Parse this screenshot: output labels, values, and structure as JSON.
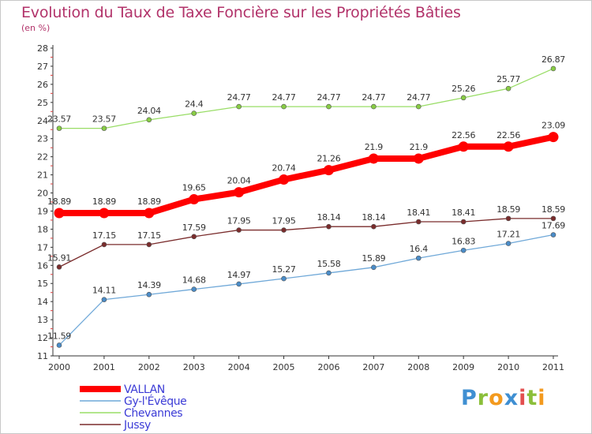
{
  "title": "Evolution du Taux de Taxe Foncière sur les Propriétés Bâties",
  "subtitle": "(en %)",
  "logo_text": "Proxiti",
  "chart_data": {
    "type": "line",
    "title": "Evolution du Taux de Taxe Foncière sur les Propriétés Bâties",
    "ylabel": "(en %)",
    "xlabel": "",
    "x": [
      2000,
      2001,
      2002,
      2003,
      2004,
      2005,
      2006,
      2007,
      2008,
      2009,
      2010,
      2011
    ],
    "ylim": [
      11,
      28
    ],
    "yticks": [
      11,
      12,
      13,
      14,
      15,
      16,
      17,
      18,
      19,
      20,
      21,
      22,
      23,
      24,
      25,
      26,
      27,
      28
    ],
    "grid": false,
    "legend_placement": "bottom-left",
    "series": [
      {
        "name": "VALLAN",
        "color": "#ff0000",
        "values": [
          18.89,
          18.89,
          18.89,
          19.65,
          20.04,
          20.74,
          21.26,
          21.9,
          21.9,
          22.56,
          22.56,
          23.09
        ],
        "labels": [
          "18.89",
          "18.89",
          "18.89",
          "19.65",
          "20.04",
          "20.74",
          "21.26",
          "21.9",
          "21.9",
          "22.56",
          "22.56",
          "23.09"
        ]
      },
      {
        "name": "Gy-l'Évêque",
        "color": "#6fa8d8",
        "values": [
          11.59,
          14.11,
          14.39,
          14.68,
          14.97,
          15.27,
          15.58,
          15.89,
          16.4,
          16.83,
          17.21,
          17.69
        ],
        "labels": [
          "11.59",
          "14.11",
          "14.39",
          "14.68",
          "14.97",
          "15.27",
          "15.58",
          "15.89",
          "16.4",
          "16.83",
          "17.21",
          "17.69"
        ]
      },
      {
        "name": "Chevannes",
        "color": "#99dd66",
        "values": [
          23.57,
          23.57,
          24.04,
          24.4,
          24.77,
          24.77,
          24.77,
          24.77,
          24.77,
          25.26,
          25.77,
          26.87
        ],
        "labels": [
          "23.57",
          "23.57",
          "24.04",
          "24.4",
          "24.77",
          "24.77",
          "24.77",
          "24.77",
          "24.77",
          "25.26",
          "25.77",
          "26.87"
        ]
      },
      {
        "name": "Jussy",
        "color": "#7a2c2c",
        "values": [
          15.91,
          17.15,
          17.15,
          17.59,
          17.95,
          17.95,
          18.14,
          18.14,
          18.41,
          18.41,
          18.59,
          18.59
        ],
        "labels": [
          "15.91",
          "17.15",
          "17.15",
          "17.59",
          "17.95",
          "17.95",
          "18.14",
          "18.14",
          "18.41",
          "18.41",
          "18.59",
          "18.59"
        ]
      }
    ]
  }
}
